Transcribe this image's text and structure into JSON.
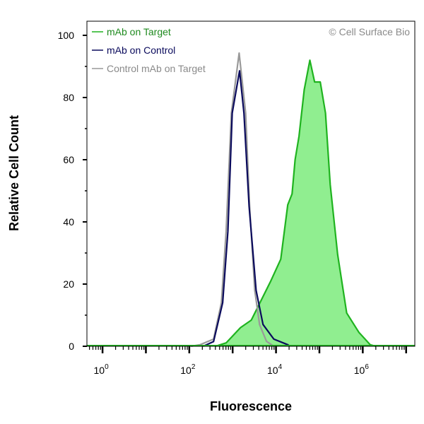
{
  "chart_data": {
    "type": "area",
    "title": "",
    "xlabel": "Fluorescence",
    "ylabel": "Relative Cell Count",
    "xscale": "log",
    "xlim_log10": [
      -0.36,
      7.2
    ],
    "ylim": [
      0,
      105
    ],
    "x_ticks": [
      {
        "base": "10",
        "exp": "0",
        "value": 1
      },
      {
        "base": "10",
        "exp": "2",
        "value": 100
      },
      {
        "base": "10",
        "exp": "4",
        "value": 10000
      },
      {
        "base": "10",
        "exp": "6",
        "value": 1000000
      }
    ],
    "y_ticks": [
      0,
      20,
      40,
      60,
      80,
      100
    ],
    "grid": false,
    "legend_placement": "top-left",
    "watermark": "© Cell Surface Bio",
    "series": [
      {
        "name": "mAb on Target",
        "color": "#1fb31f",
        "text_color": "#1e8a1e",
        "fill": "#90ee90",
        "filled": true,
        "log10_x": [
          2.6,
          2.85,
          3.18,
          3.43,
          3.88,
          4.11,
          4.27,
          4.37,
          4.44,
          4.53,
          4.65,
          4.78,
          4.89,
          5.02,
          5.14,
          5.25,
          5.42,
          5.63,
          5.91,
          6.17,
          6.3
        ],
        "y": [
          0,
          1.1,
          6,
          8.4,
          21,
          28,
          45.5,
          49,
          60,
          67.5,
          82.5,
          92,
          85,
          85,
          75,
          52,
          29.5,
          10.7,
          4.5,
          0.5,
          0
        ]
      },
      {
        "name": "mAb on Control",
        "color": "#0a0a5c",
        "text_color": "#0a0a5c",
        "filled": false,
        "log10_x": [
          2.32,
          2.56,
          2.77,
          2.89,
          2.99,
          3.16,
          3.26,
          3.38,
          3.54,
          3.7,
          3.95,
          4.27,
          4.32
        ],
        "y": [
          0,
          1.5,
          14,
          37,
          75,
          88.6,
          75,
          45,
          18,
          7,
          2.3,
          0.5,
          0
        ]
      },
      {
        "name": "Control mAb on Target",
        "color": "#999999",
        "text_color": "#8a8a8a",
        "filled": false,
        "log10_x": [
          2.04,
          2.25,
          2.56,
          2.74,
          2.85,
          2.97,
          3.15,
          3.3,
          3.39,
          3.51,
          3.62,
          3.78,
          3.95
        ],
        "y": [
          0,
          0.5,
          2.3,
          14,
          37,
          75,
          94.3,
          75,
          45,
          18,
          7,
          1.6,
          0
        ]
      }
    ]
  }
}
